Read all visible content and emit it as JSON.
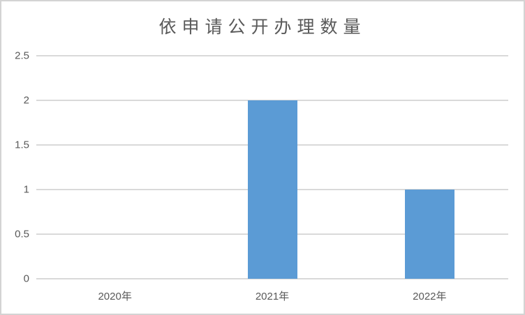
{
  "chart_data": {
    "type": "bar",
    "title": "依申请公开办理数量",
    "categories": [
      "2020年",
      "2021年",
      "2022年"
    ],
    "values": [
      0,
      2,
      1
    ],
    "xlabel": "",
    "ylabel": "",
    "ylim": [
      0,
      2.5
    ],
    "yticks": [
      0,
      0.5,
      1,
      1.5,
      2,
      2.5
    ],
    "ytick_labels": [
      "0",
      "0.5",
      "1",
      "1.5",
      "2",
      "2.5"
    ],
    "legend_position": "none",
    "grid": "horizontal",
    "bar_color": "#5b9bd5",
    "gridline_color": "#d9d9d9",
    "axis_line_color": "#d9d9d9",
    "text_color": "#595959",
    "border_color": "#d3d3d3",
    "background_color": "#ffffff"
  }
}
